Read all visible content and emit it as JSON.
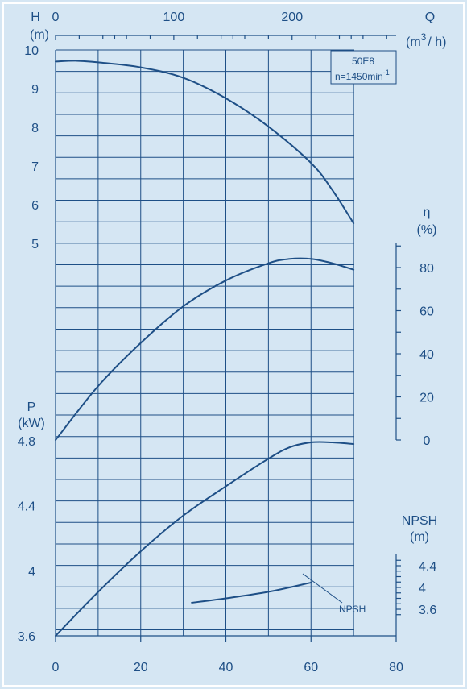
{
  "chart_data": {
    "type": "line",
    "model": "50E8",
    "speed_base": "n=1450min",
    "speed_sup": "-1",
    "x_axis": {
      "quantity": "Q (m³/h)",
      "ticks": [
        0,
        20,
        40,
        60,
        80
      ],
      "range": [
        0,
        80
      ]
    },
    "top_axis": {
      "letter": "Q",
      "unit_open": "(m",
      "unit_sup": "3",
      "unit_close": "/ h)",
      "ticks": [
        0,
        100,
        200
      ],
      "range": [
        0,
        288
      ]
    },
    "head_axis": {
      "letter": "H",
      "unit": "(m)",
      "ticks": [
        5,
        6,
        7,
        8,
        9,
        10
      ],
      "range": [
        5,
        10
      ]
    },
    "power_axis": {
      "letter": "P",
      "unit": "(kW)",
      "ticks": [
        "3.6",
        "4",
        "4.4",
        "4.8"
      ],
      "range": [
        3.6,
        4.8
      ]
    },
    "efficiency_axis": {
      "letter": "η",
      "unit": "(%)",
      "ticks": [
        0,
        20,
        40,
        60,
        80
      ],
      "range": [
        0,
        90
      ]
    },
    "npsh_axis": {
      "letter": "NPSH",
      "unit": "(m)",
      "ticks": [
        "3.6",
        "4",
        "4.4"
      ],
      "range": [
        3.4,
        4.6
      ]
    },
    "grid": true,
    "series": [
      {
        "axis": "head",
        "x": [
          0,
          5,
          10,
          20,
          30,
          40,
          50,
          60,
          65,
          70
        ],
        "y": [
          9.7,
          9.72,
          9.68,
          9.55,
          9.28,
          8.75,
          8.02,
          7.08,
          6.38,
          5.52
        ]
      },
      {
        "axis": "efficiency",
        "x": [
          0,
          10,
          20,
          30,
          40,
          50,
          55,
          60,
          65,
          70
        ],
        "y": [
          0,
          25,
          45,
          62,
          74,
          82,
          84,
          84,
          82,
          79
        ]
      },
      {
        "axis": "power",
        "x": [
          0,
          10,
          20,
          30,
          40,
          50,
          55,
          60,
          65,
          70
        ],
        "y": [
          3.6,
          3.87,
          4.12,
          4.34,
          4.52,
          4.69,
          4.76,
          4.79,
          4.79,
          4.78
        ]
      },
      {
        "axis": "npsh",
        "name": "NPSH",
        "x": [
          32,
          40,
          50,
          60
        ],
        "y": [
          3.72,
          3.8,
          3.92,
          4.09
        ]
      }
    ]
  }
}
